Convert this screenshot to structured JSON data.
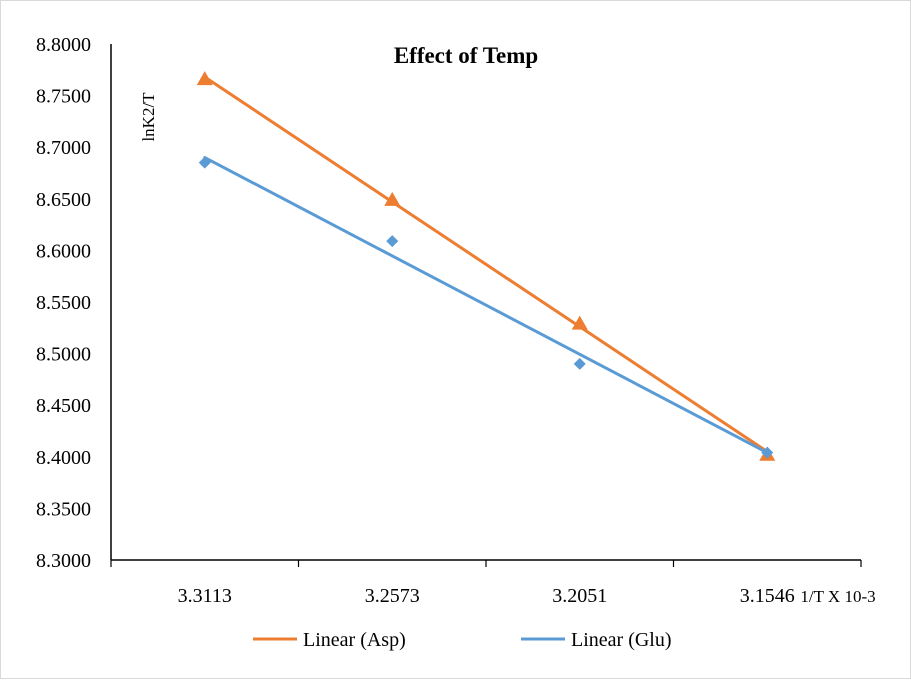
{
  "chart_data": {
    "type": "scatter",
    "title": "Effect of Temp",
    "xlabel": "1/T X 10-3",
    "ylabel": "lnK2/T",
    "categories": [
      "3.3113",
      "3.2573",
      "3.2051",
      "3.1546"
    ],
    "ylim": [
      8.3,
      8.8
    ],
    "yticks": [
      "8.8000",
      "8.7500",
      "8.7000",
      "8.6500",
      "8.6000",
      "8.5500",
      "8.5000",
      "8.4500",
      "8.4000",
      "8.3500",
      "8.3000"
    ],
    "grid": false,
    "legend_position": "bottom",
    "series": [
      {
        "name": "Asp",
        "marker": "triangle",
        "color": "#ed7d31",
        "values": [
          8.766,
          8.649,
          8.529,
          8.402
        ],
        "trendline": {
          "label": "Linear (Asp)",
          "start": 8.768,
          "end": 8.405
        }
      },
      {
        "name": "Glu",
        "marker": "diamond",
        "color": "#5b9bd5",
        "values": [
          8.685,
          8.609,
          8.49,
          8.404
        ],
        "trendline": {
          "label": "Linear (Glu)",
          "start": 8.69,
          "end": 8.404
        }
      }
    ]
  }
}
